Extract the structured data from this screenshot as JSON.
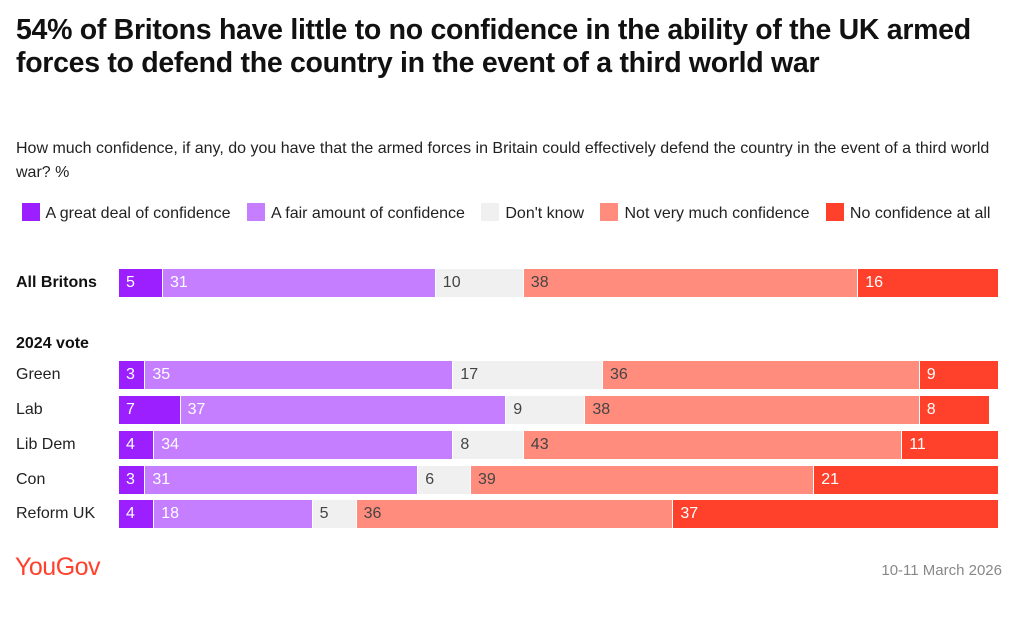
{
  "title": "54% of Britons have little to no confidence in the ability of the UK armed forces to defend the country in the event of a third world war",
  "subtitle": "How much confidence, if any, do you have that the armed forces in Britain could effectively defend the country in the event of a third world war? %",
  "logo": "YouGov",
  "date": "10-11 March 2026",
  "chart_data": {
    "type": "bar",
    "orientation": "horizontal",
    "stacked": true,
    "xlim": [
      0,
      100
    ],
    "legend_position": "top",
    "group_label": "2024 vote",
    "categories": [
      "All Britons",
      "Green",
      "Lab",
      "Lib Dem",
      "Con",
      "Reform UK"
    ],
    "series": [
      {
        "name": "A great deal of confidence",
        "color": "#9B1FFF",
        "label_color": "#ffffff",
        "values": [
          5,
          3,
          7,
          4,
          3,
          4
        ]
      },
      {
        "name": "A fair amount of confidence",
        "color": "#C47EFF",
        "label_color": "#ffffff",
        "values": [
          31,
          35,
          37,
          34,
          31,
          18
        ]
      },
      {
        "name": "Don't know",
        "color": "#F0F0F0",
        "label_color": "#444444",
        "values": [
          10,
          17,
          9,
          8,
          6,
          5
        ]
      },
      {
        "name": "Not very much confidence",
        "color": "#FF8C7D",
        "label_color": "#444444",
        "values": [
          38,
          36,
          38,
          43,
          39,
          36
        ]
      },
      {
        "name": "No confidence at all",
        "color": "#FF412C",
        "label_color": "#ffffff",
        "values": [
          16,
          9,
          8,
          11,
          21,
          37
        ]
      }
    ]
  }
}
